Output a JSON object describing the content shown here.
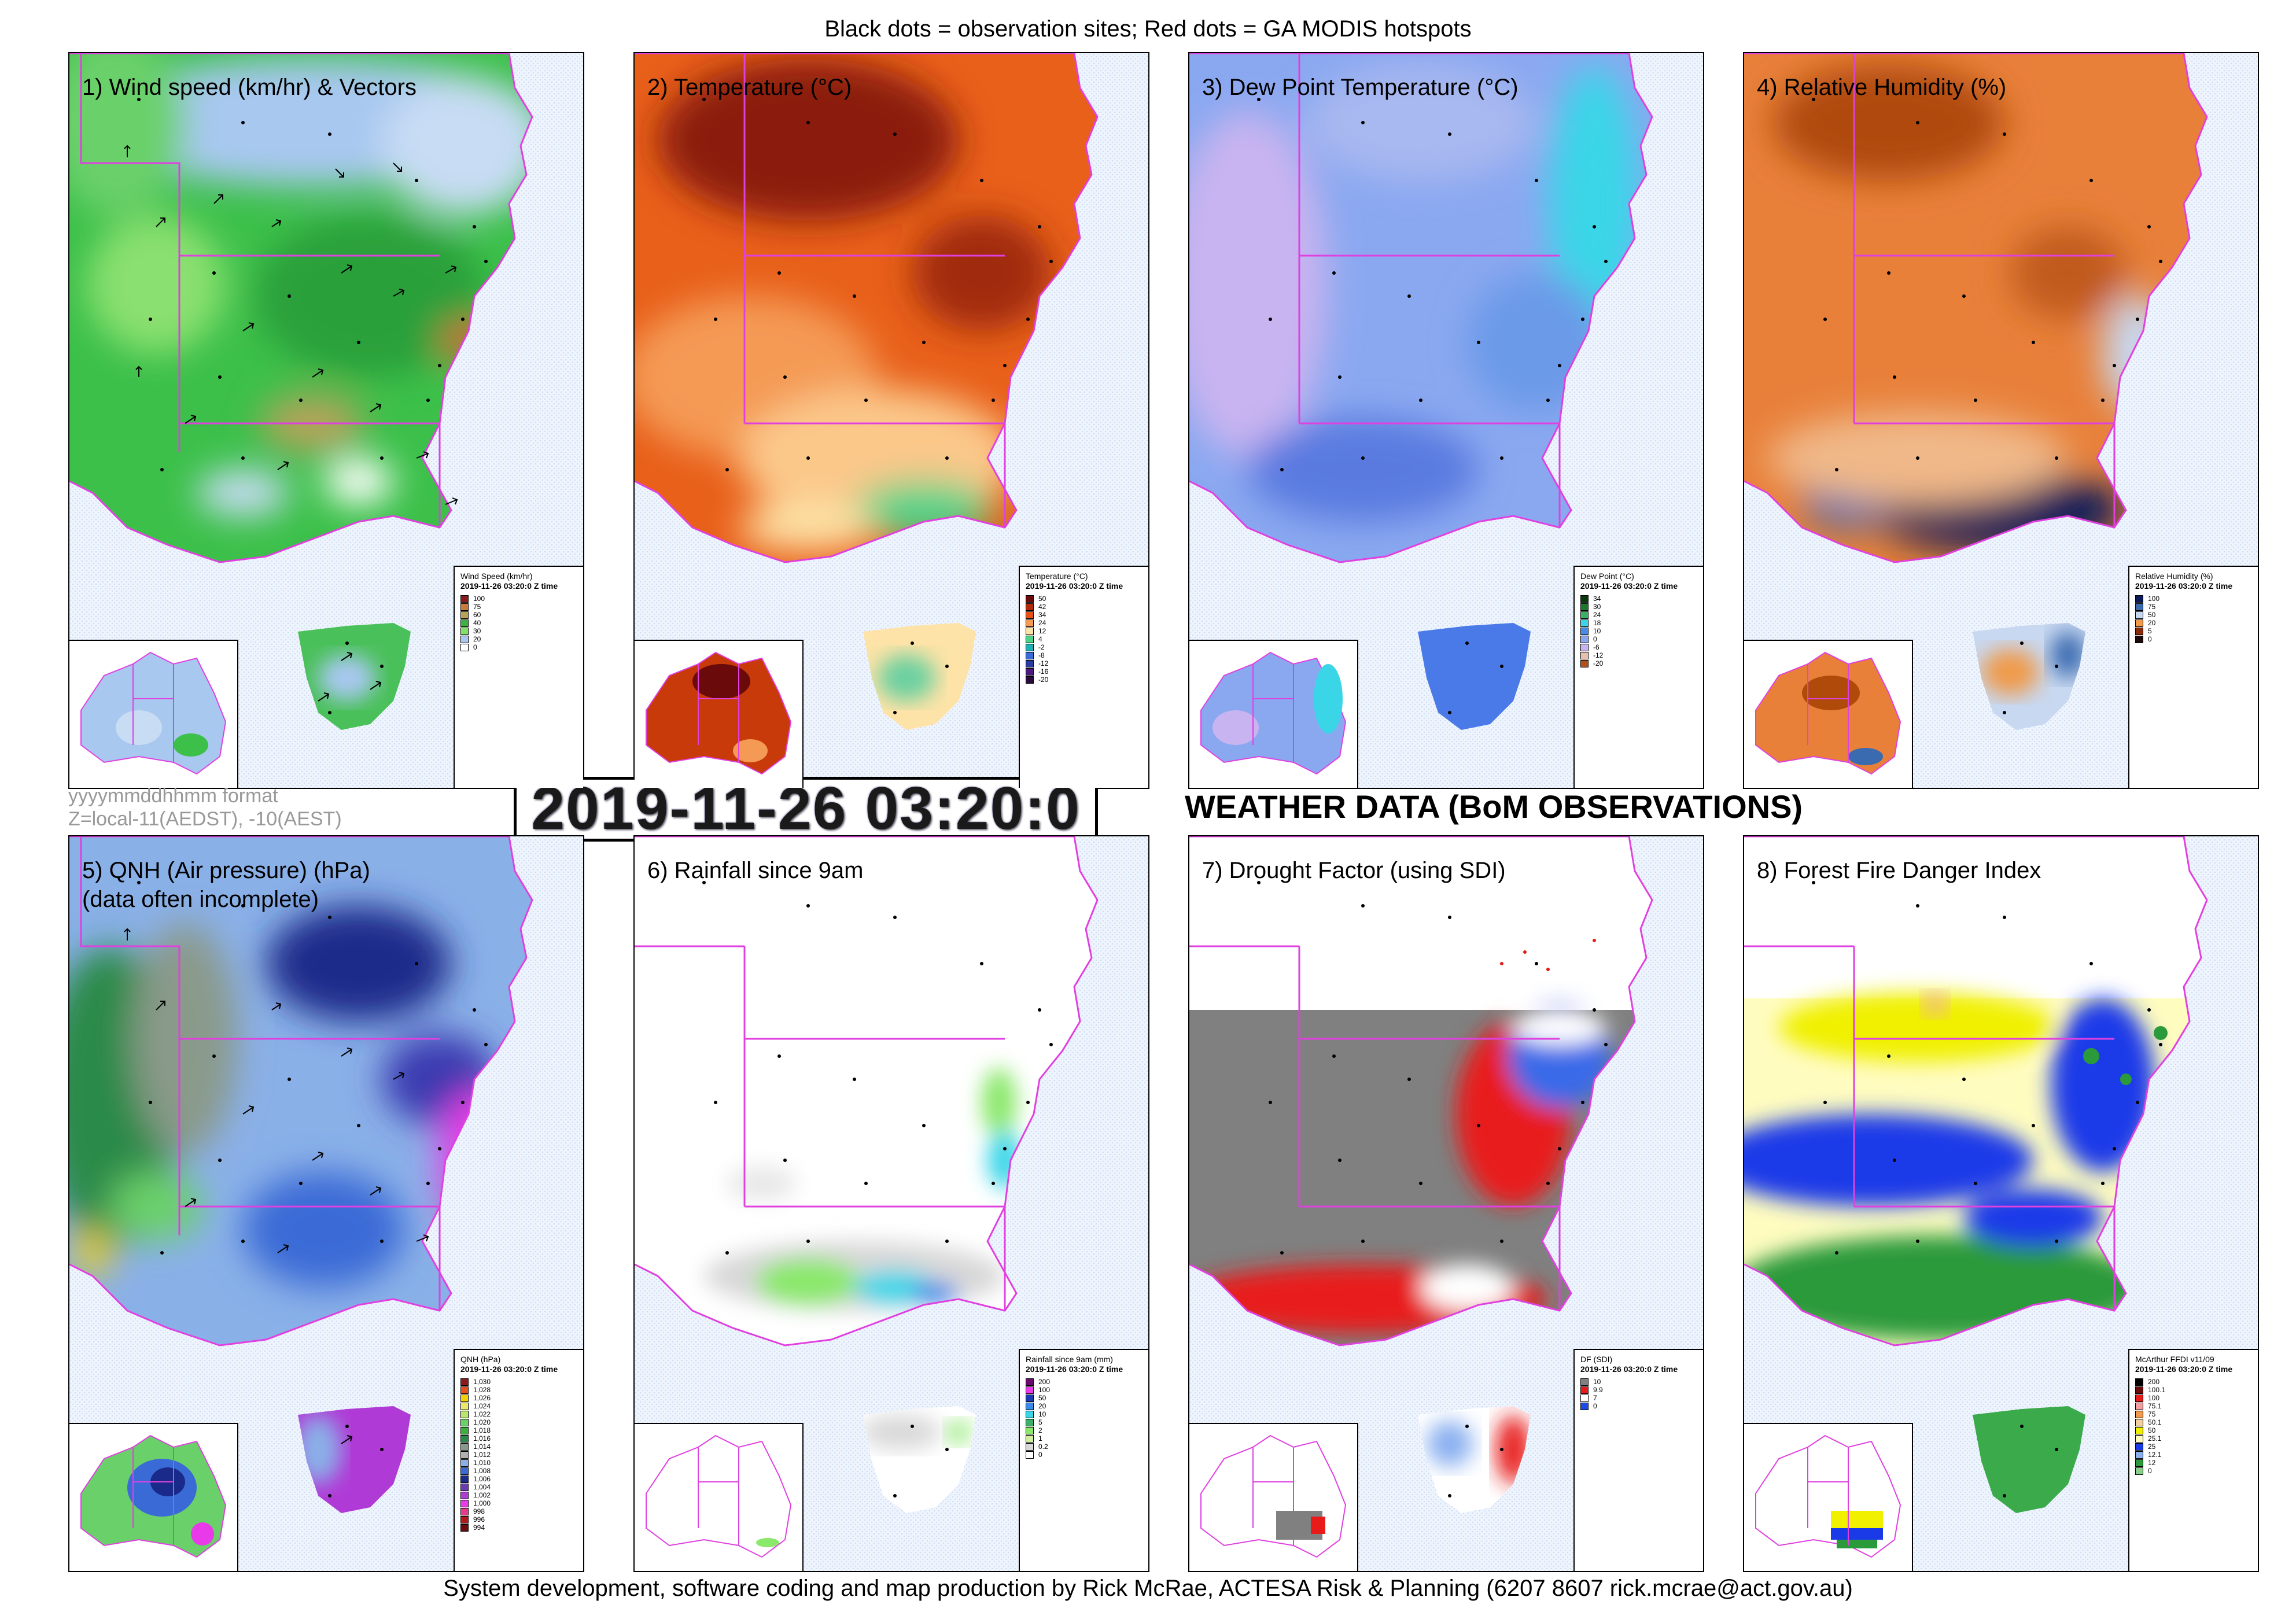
{
  "header": "Black dots = observation sites; Red dots = GA MODIS hotspots",
  "footer": "System development, software coding and map production by Rick McRae, ACTESA Risk & Planning (6207 8607 rick.mcrae@act.gov.au)",
  "format_note": {
    "line1": "yyyymmddhhmm format",
    "line2": "Z=local-11(AEDST), -10(AEST)"
  },
  "datetime": "2019-11-26 03:20:0",
  "main_title": "WEATHER DATA (BoM OBSERVATIONS)",
  "legend_subtitle": "2019-11-26 03:20:0 Z time",
  "panels": [
    {
      "title": "1) Wind speed (km/hr) & Vectors",
      "legend_title": "Wind Speed (km/hr)",
      "legend": [
        {
          "label": "100",
          "color": "#8b1a1a"
        },
        {
          "label": "75",
          "color": "#cc7a3a"
        },
        {
          "label": "60",
          "color": "#b5a35a"
        },
        {
          "label": "40",
          "color": "#3cb043"
        },
        {
          "label": "30",
          "color": "#7fe06a"
        },
        {
          "label": "20",
          "color": "#a8c8f0"
        },
        {
          "label": "0",
          "color": "#ffffff"
        }
      ]
    },
    {
      "title": "2) Temperature (°C)",
      "legend_title": "Temperature (°C)",
      "legend": [
        {
          "label": "50",
          "color": "#6b0a0a"
        },
        {
          "label": "42",
          "color": "#b32a0a"
        },
        {
          "label": "34",
          "color": "#e8501a"
        },
        {
          "label": "24",
          "color": "#f49a55"
        },
        {
          "label": "12",
          "color": "#fde3a7"
        },
        {
          "label": "4",
          "color": "#4ed38a"
        },
        {
          "label": "-2",
          "color": "#23b0b5"
        },
        {
          "label": "-8",
          "color": "#3a6bd6"
        },
        {
          "label": "-12",
          "color": "#2a3a9e"
        },
        {
          "label": "-16",
          "color": "#4b1a7a"
        },
        {
          "label": "-20",
          "color": "#2a0a3a"
        }
      ]
    },
    {
      "title": "3) Dew Point Temperature (°C)",
      "legend_title": "Dew Point (°C)",
      "legend": [
        {
          "label": "34",
          "color": "#0a3a0a"
        },
        {
          "label": "30",
          "color": "#1a7a2a"
        },
        {
          "label": "24",
          "color": "#3ab06a"
        },
        {
          "label": "18",
          "color": "#3ad6e8"
        },
        {
          "label": "10",
          "color": "#4a8ae8"
        },
        {
          "label": "0",
          "color": "#8aa8f0"
        },
        {
          "label": "-6",
          "color": "#c8b4f0"
        },
        {
          "label": "-12",
          "color": "#e8c0b0"
        },
        {
          "label": "-20",
          "color": "#b0501a"
        }
      ]
    },
    {
      "title": "4) Relative Humidity (%)",
      "legend_title": "Relative Humidity (%)",
      "legend": [
        {
          "label": "100",
          "color": "#0a1a5a"
        },
        {
          "label": "75",
          "color": "#3a6ab0"
        },
        {
          "label": "50",
          "color": "#c8d8f0"
        },
        {
          "label": "20",
          "color": "#f09a4a"
        },
        {
          "label": "5",
          "color": "#8b2a0a"
        },
        {
          "label": "0",
          "color": "#1a0a0a"
        }
      ]
    },
    {
      "title": "5) QNH (Air pressure) (hPa)\n(data often incomplete)",
      "legend_title": "QNH (hPa)",
      "legend": [
        {
          "label": "1,030",
          "color": "#8b1a1a"
        },
        {
          "label": "1,028",
          "color": "#e8501a"
        },
        {
          "label": "1,026",
          "color": "#f0d000"
        },
        {
          "label": "1,024",
          "color": "#e8e86a"
        },
        {
          "label": "1,022",
          "color": "#b8e86a"
        },
        {
          "label": "1,020",
          "color": "#6ad06a"
        },
        {
          "label": "1,018",
          "color": "#3ab03a"
        },
        {
          "label": "1,016",
          "color": "#2a8a4a"
        },
        {
          "label": "1,014",
          "color": "#8a9a8a"
        },
        {
          "label": "1,012",
          "color": "#b0b0b0"
        },
        {
          "label": "1,010",
          "color": "#8ab0e8"
        },
        {
          "label": "1,008",
          "color": "#3a6ad6"
        },
        {
          "label": "1,006",
          "color": "#1a2a8a"
        },
        {
          "label": "1,004",
          "color": "#6a3ab0"
        },
        {
          "label": "1,002",
          "color": "#b03ad6"
        },
        {
          "label": "1,000",
          "color": "#e83ae8"
        },
        {
          "label": "998",
          "color": "#e83a8a"
        },
        {
          "label": "996",
          "color": "#b01a1a"
        },
        {
          "label": "994",
          "color": "#6a0a0a"
        }
      ]
    },
    {
      "title": "6) Rainfall since 9am",
      "legend_title": "Rainfall since 9am (mm)",
      "legend": [
        {
          "label": "200",
          "color": "#6a0a6a"
        },
        {
          "label": "100",
          "color": "#e83ae8"
        },
        {
          "label": "50",
          "color": "#1a3ab0"
        },
        {
          "label": "20",
          "color": "#3a8ae8"
        },
        {
          "label": "10",
          "color": "#3ad6e8"
        },
        {
          "label": "5",
          "color": "#3ab06a"
        },
        {
          "label": "2",
          "color": "#8ae86a"
        },
        {
          "label": "1",
          "color": "#d0f0a0"
        },
        {
          "label": "0.2",
          "color": "#d8d8d8"
        },
        {
          "label": "0",
          "color": "#ffffff"
        }
      ]
    },
    {
      "title": "7) Drought Factor (using SDI)",
      "legend_title": "DF (SDI)",
      "legend": [
        {
          "label": "10",
          "color": "#808080"
        },
        {
          "label": "9.9",
          "color": "#e81a1a"
        },
        {
          "label": "7",
          "color": "#ffffff"
        },
        {
          "label": "0",
          "color": "#1a4ae8"
        }
      ]
    },
    {
      "title": "8) Forest Fire Danger Index",
      "legend_title": "McArthur FFDI v11/09",
      "legend": [
        {
          "label": "200",
          "color": "#000000"
        },
        {
          "label": "100.1",
          "color": "#6a0a0a"
        },
        {
          "label": "100",
          "color": "#e81a1a"
        },
        {
          "label": "75.1",
          "color": "#f0a0a0"
        },
        {
          "label": "75",
          "color": "#f09a4a"
        },
        {
          "label": "50.1",
          "color": "#f0d0a0"
        },
        {
          "label": "50",
          "color": "#f0f000"
        },
        {
          "label": "25.1",
          "color": "#fffcc0"
        },
        {
          "label": "25",
          "color": "#1a3ae8"
        },
        {
          "label": "12.1",
          "color": "#8ab0f0"
        },
        {
          "label": "12",
          "color": "#2a9a3a"
        },
        {
          "label": "0",
          "color": "#8ad08a"
        }
      ]
    }
  ]
}
